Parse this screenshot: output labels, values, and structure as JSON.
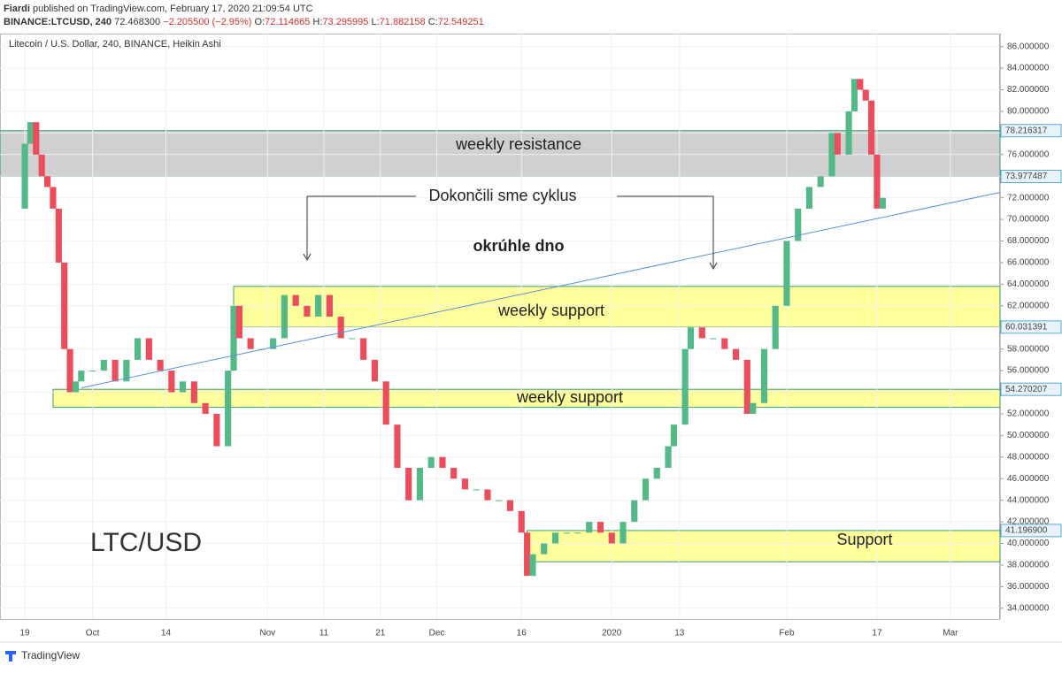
{
  "header": {
    "author": "Fiardi",
    "published": "published on TradingView.com, February 17, 2020 21:09:54 UTC",
    "symbol": "BINANCE:LTCUSD, 240",
    "price": "72.468300",
    "change": "−2.205500 (−2.95%)",
    "ohlc": [
      {
        "label": "O:",
        "value": "72.114665"
      },
      {
        "label": "H:",
        "value": "73.295995"
      },
      {
        "label": "L:",
        "value": "71.882158"
      },
      {
        "label": "C:",
        "value": "72.549251"
      }
    ]
  },
  "chart_data": {
    "type": "candlestick",
    "title": "Litecoin / U.S. Dollar, 240, BINANCE, Heikin Ashi",
    "x": [
      -3,
      0,
      1,
      2,
      3,
      4,
      5,
      6,
      7,
      8,
      9,
      10,
      12,
      14,
      16,
      18,
      20,
      22,
      24,
      26,
      28,
      30,
      32,
      34,
      36,
      37,
      38,
      40,
      42,
      44,
      46,
      48,
      50,
      52,
      54,
      56,
      58,
      60,
      62,
      64,
      66,
      68,
      70,
      72,
      74,
      76,
      78,
      80,
      82,
      84,
      86,
      88,
      89,
      90,
      92,
      94,
      96,
      98,
      100,
      102,
      104,
      106,
      108,
      110,
      112,
      114,
      115,
      117,
      118,
      120,
      122,
      124,
      126,
      128,
      129,
      131,
      133,
      135,
      137,
      139,
      141,
      143,
      144,
      146,
      147,
      148,
      149,
      150,
      151,
      152
    ],
    "series": [
      {
        "name": "LTCUSD",
        "up_color": "#53b987",
        "down_color": "#eb4d5c",
        "values": [
          71,
          77,
          79,
          76,
          74,
          73,
          71,
          66,
          58,
          54,
          55,
          56,
          56,
          57,
          55,
          57,
          59,
          57,
          56,
          54,
          55,
          53,
          52,
          49,
          56,
          62,
          59,
          58,
          58,
          59,
          63,
          62,
          61,
          63,
          61,
          59,
          59,
          57,
          55,
          51,
          47,
          44,
          47,
          48,
          47,
          46,
          45,
          45,
          44,
          44,
          43,
          41,
          37,
          39,
          40,
          41,
          41,
          41,
          42,
          41,
          40,
          42,
          44,
          46,
          47,
          49,
          51,
          58,
          60,
          59,
          59,
          58,
          57,
          52,
          53,
          58,
          62,
          68,
          71,
          73,
          74,
          78,
          76,
          80,
          83,
          82,
          81,
          76,
          71,
          72
        ]
      }
    ],
    "xlim": [
      -4.4,
      172.8
    ],
    "ylim": [
      33,
      87.2
    ],
    "xticks": [
      {
        "value": 0,
        "label": "19"
      },
      {
        "value": 12,
        "label": "Oct"
      },
      {
        "value": 25,
        "label": "14"
      },
      {
        "value": 43,
        "label": "Nov"
      },
      {
        "value": 53,
        "label": "11"
      },
      {
        "value": 63,
        "label": "21"
      },
      {
        "value": 73,
        "label": "Dec"
      },
      {
        "value": 88,
        "label": "16"
      },
      {
        "value": 104,
        "label": "2020"
      },
      {
        "value": 116,
        "label": "13"
      },
      {
        "value": 135,
        "label": "Feb"
      },
      {
        "value": 151,
        "label": "17"
      },
      {
        "value": 164,
        "label": "Mar"
      }
    ],
    "yticks": [
      {
        "value": 34,
        "label": "34.000000"
      },
      {
        "value": 36,
        "label": "36.000000"
      },
      {
        "value": 38,
        "label": "38.000000"
      },
      {
        "value": 40,
        "label": "40.000000"
      },
      {
        "value": 42,
        "label": "42.000000"
      },
      {
        "value": 44,
        "label": "44.000000"
      },
      {
        "value": 46,
        "label": "46.000000"
      },
      {
        "value": 48,
        "label": "48.000000"
      },
      {
        "value": 50,
        "label": "50.000000"
      },
      {
        "value": 52,
        "label": "52.000000"
      },
      {
        "value": 54,
        "label": "54.000000"
      },
      {
        "value": 56,
        "label": "56.000000"
      },
      {
        "value": 58,
        "label": "58.000000"
      },
      {
        "value": 60,
        "label": "60.000000"
      },
      {
        "value": 62,
        "label": "62.000000"
      },
      {
        "value": 64,
        "label": "64.000000"
      },
      {
        "value": 66,
        "label": "66.000000"
      },
      {
        "value": 68,
        "label": "68.000000"
      },
      {
        "value": 70,
        "label": "70.000000"
      },
      {
        "value": 72,
        "label": "72.000000"
      },
      {
        "value": 74,
        "label": "74.000000"
      },
      {
        "value": 76,
        "label": "76.000000"
      },
      {
        "value": 78,
        "label": "78.000000"
      },
      {
        "value": 80,
        "label": "80.000000"
      },
      {
        "value": 82,
        "label": "82.000000"
      },
      {
        "value": 84,
        "label": "84.000000"
      },
      {
        "value": 86,
        "label": "86.000000"
      }
    ],
    "zones": [
      {
        "label": "weekly resistance",
        "x0": -4.4,
        "range": [
          73.977487,
          78.216317
        ],
        "color": "#c8c8c8"
      },
      {
        "label": "weekly support",
        "x0": 37,
        "range": [
          60.031391,
          63.8
        ],
        "color": "#ffff8a"
      },
      {
        "label": "weekly support",
        "x0": 5,
        "range": [
          52.6,
          54.270207
        ],
        "color": "#ffff8a"
      },
      {
        "label": "Support",
        "x0": 89,
        "range": [
          38.3,
          41.1969
        ],
        "color": "#ffff8a"
      }
    ],
    "trendline": {
      "x": [
        10,
        172.8
      ],
      "values": [
        54.4,
        72.5
      ],
      "color": "#5b8fd6"
    },
    "price_labels": [
      78.216317,
      73.977487,
      60.031391,
      54.270207,
      {
        "value": 41.1969,
        "label": "41.196900"
      }
    ],
    "annotations": [
      "Dokončili sme cyklus",
      "okrúhle dno",
      "LTC/USD"
    ]
  },
  "footer": "TradingView"
}
